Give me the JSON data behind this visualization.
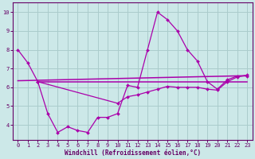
{
  "xlabel": "Windchill (Refroidissement éolien,°C)",
  "background_color": "#cce8e8",
  "grid_color": "#aacccc",
  "line_color": "#aa00aa",
  "xlim": [
    -0.5,
    23.5
  ],
  "ylim": [
    3.2,
    10.5
  ],
  "yticks": [
    4,
    5,
    6,
    7,
    8,
    9,
    10
  ],
  "xticks": [
    0,
    1,
    2,
    3,
    4,
    5,
    6,
    7,
    8,
    9,
    10,
    11,
    12,
    13,
    14,
    15,
    16,
    17,
    18,
    19,
    20,
    21,
    22,
    23
  ],
  "line1_x": [
    0,
    1,
    2,
    3,
    4,
    5,
    6,
    7,
    8,
    9,
    10,
    11,
    12,
    13,
    14,
    15,
    16,
    17,
    18,
    19,
    20,
    21,
    22,
    23
  ],
  "line1_y": [
    8.0,
    7.3,
    6.3,
    4.6,
    3.6,
    3.9,
    3.7,
    3.6,
    4.4,
    4.4,
    4.6,
    6.1,
    6.0,
    8.0,
    10.0,
    9.6,
    9.0,
    8.0,
    7.4,
    6.3,
    5.9,
    6.4,
    6.6,
    6.6
  ],
  "line2_x": [
    2,
    23
  ],
  "line2_y": [
    6.3,
    6.3
  ],
  "line3_x": [
    0,
    23
  ],
  "line3_y": [
    6.35,
    6.62
  ],
  "line4_x": [
    2,
    10,
    11,
    12,
    13,
    14,
    15,
    16,
    17,
    18,
    19,
    20,
    21,
    22,
    23
  ],
  "line4_y": [
    6.3,
    5.15,
    5.5,
    5.6,
    5.75,
    5.9,
    6.05,
    6.0,
    6.0,
    6.0,
    5.9,
    5.85,
    6.3,
    6.55,
    6.65
  ]
}
